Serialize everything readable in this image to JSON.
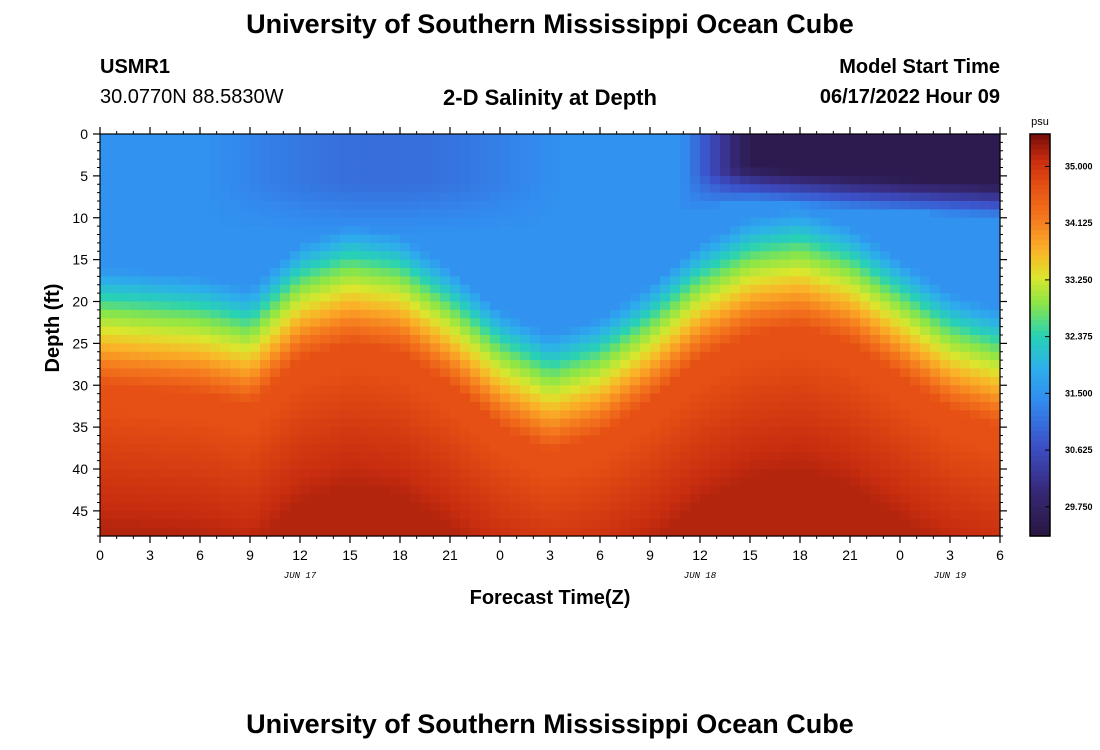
{
  "header": {
    "title": "University of Southern Mississippi Ocean Cube",
    "station_id": "USMR1",
    "coordinates": "30.0770N  88.5830W",
    "subtitle": "2-D Salinity at Depth",
    "model_label": "Model Start Time",
    "model_time": "06/17/2022 Hour 09"
  },
  "footer": {
    "title": "University of Southern Mississippi Ocean Cube"
  },
  "colors": {
    "deep_blue": "#2b1a45",
    "blue": "#3a8ff0",
    "green": "#2fd4a0",
    "yellow": "#c8e830",
    "orange": "#e85a18",
    "dark_red": "#7a0c08"
  },
  "chart_data": {
    "type": "heatmap",
    "title": "2-D Salinity at Depth",
    "xlabel": "Forecast Time(Z)",
    "ylabel": "Depth (ft)",
    "x_hours_range": [
      0,
      54
    ],
    "ylim": [
      0,
      48
    ],
    "x_tick_labels": [
      "0",
      "3",
      "6",
      "9",
      "12",
      "15",
      "18",
      "21",
      "0",
      "3",
      "6",
      "9",
      "12",
      "15",
      "18",
      "21",
      "0",
      "3",
      "6"
    ],
    "y_ticks": [
      0,
      5,
      10,
      15,
      20,
      25,
      30,
      35,
      40,
      45
    ],
    "date_labels": [
      {
        "label": "JUN 17",
        "hour": 12
      },
      {
        "label": "JUN 18",
        "hour": 36
      },
      {
        "label": "JUN 19",
        "hour": 51
      }
    ],
    "colorbar": {
      "unit": "psu",
      "min": 29.3,
      "max": 35.5,
      "ticks": [
        "35.000",
        "34.125",
        "33.250",
        "32.375",
        "31.500",
        "30.625",
        "29.750"
      ]
    },
    "halocline": {
      "description": "Depth (ft) of the mid-salinity (~32.8 psu) transition vs forecast hour",
      "hours": [
        0,
        6,
        9,
        12,
        15,
        18,
        21,
        24,
        27,
        30,
        33,
        36,
        39,
        42,
        45,
        48,
        51,
        54
      ],
      "depth_ft": [
        21,
        22,
        23.5,
        18,
        16,
        17,
        21,
        26,
        29,
        27,
        23,
        18,
        15,
        14,
        16,
        20,
        24,
        26
      ]
    },
    "surface_min_region": {
      "description": "Low-salinity (~29.5 psu) surface water, late forecast",
      "hours": [
        35,
        39,
        45,
        54
      ],
      "bottom_depth_ft": [
        9,
        8,
        9,
        10
      ]
    }
  }
}
